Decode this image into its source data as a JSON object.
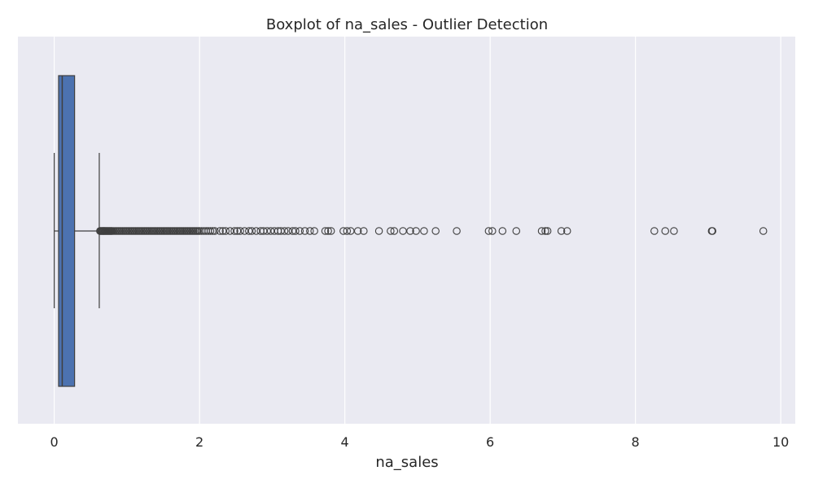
{
  "chart_data": {
    "type": "boxplot",
    "title": "Boxplot of na_sales - Outlier Detection",
    "xlabel": "na_sales",
    "ylabel": "",
    "orientation": "horizontal",
    "xlim": [
      -0.5,
      10.2
    ],
    "xticks": [
      0,
      2,
      4,
      6,
      8,
      10
    ],
    "grid": true,
    "colors": {
      "background": "#eaeaf2",
      "grid": "#ffffff",
      "box_fill": "#4c72b0",
      "line": "#3f3f3f",
      "text": "#262626"
    },
    "series": [
      {
        "whisker_low": 0.0,
        "q1": 0.06,
        "median": 0.11,
        "q3": 0.28,
        "whisker_high": 0.62,
        "outliers": [
          0.63,
          0.64,
          0.65,
          0.66,
          0.67,
          0.68,
          0.69,
          0.7,
          0.71,
          0.72,
          0.73,
          0.74,
          0.75,
          0.76,
          0.77,
          0.78,
          0.79,
          0.8,
          0.82,
          0.84,
          0.86,
          0.88,
          0.9,
          0.92,
          0.94,
          0.96,
          0.98,
          1.0,
          1.02,
          1.04,
          1.06,
          1.08,
          1.1,
          1.12,
          1.14,
          1.16,
          1.18,
          1.2,
          1.22,
          1.24,
          1.26,
          1.28,
          1.3,
          1.32,
          1.34,
          1.36,
          1.38,
          1.4,
          1.42,
          1.44,
          1.46,
          1.48,
          1.5,
          1.52,
          1.54,
          1.56,
          1.58,
          1.6,
          1.62,
          1.64,
          1.66,
          1.68,
          1.7,
          1.72,
          1.74,
          1.76,
          1.78,
          1.8,
          1.82,
          1.84,
          1.86,
          1.88,
          1.9,
          1.92,
          1.94,
          1.96,
          1.98,
          2.0,
          2.03,
          2.06,
          2.09,
          2.12,
          2.15,
          2.18,
          2.21,
          2.28,
          2.32,
          2.36,
          2.42,
          2.48,
          2.52,
          2.56,
          2.62,
          2.68,
          2.72,
          2.78,
          2.84,
          2.88,
          2.93,
          2.98,
          3.03,
          3.08,
          3.12,
          3.17,
          3.22,
          3.28,
          3.32,
          3.38,
          3.45,
          3.52,
          3.58,
          3.73,
          3.77,
          3.81,
          3.98,
          4.03,
          4.08,
          4.18,
          4.26,
          4.47,
          4.63,
          4.68,
          4.8,
          4.9,
          4.98,
          5.09,
          5.25,
          5.54,
          5.98,
          6.03,
          6.17,
          6.36,
          6.71,
          6.76,
          6.79,
          6.98,
          7.06,
          8.26,
          8.41,
          8.53,
          9.05,
          9.06,
          9.76
        ]
      }
    ]
  }
}
